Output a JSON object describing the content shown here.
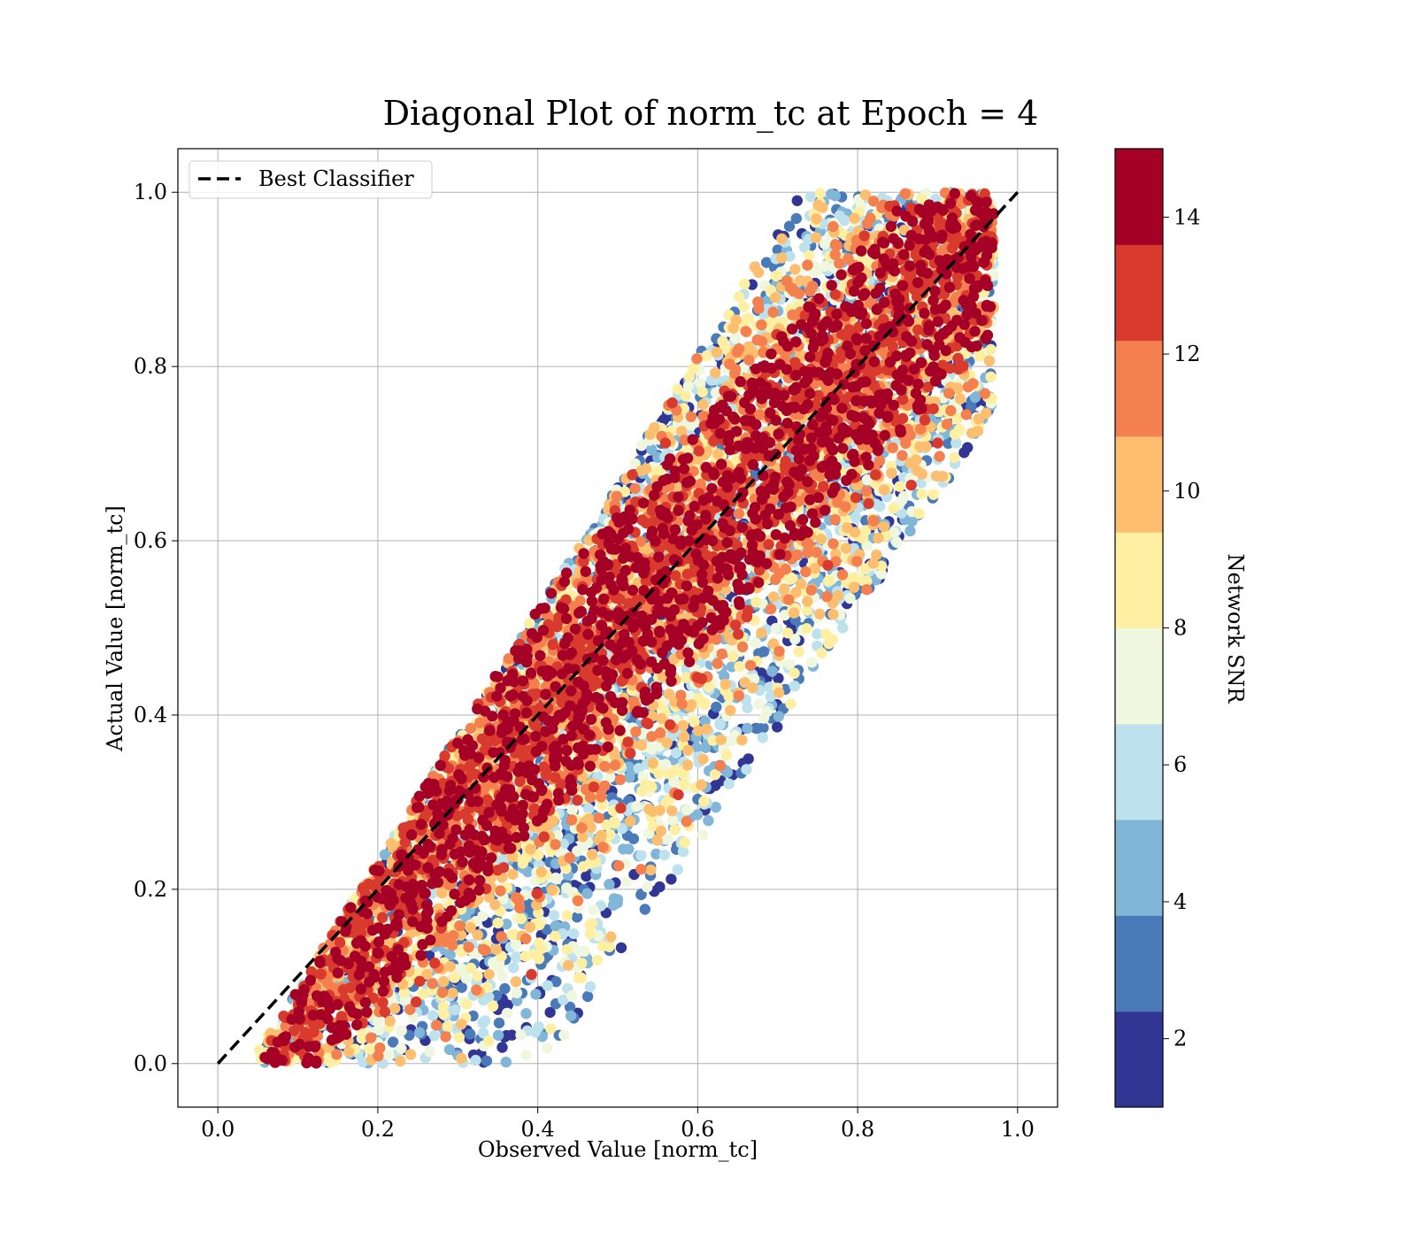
{
  "chart_data": {
    "type": "scatter",
    "title": "Diagonal Plot of norm_tc at Epoch = 4",
    "xlabel": "Observed Value [norm_tc]",
    "ylabel": "Actual Value [norm_tc]",
    "xlim": [
      -0.05,
      1.05
    ],
    "ylim": [
      -0.05,
      1.05
    ],
    "xticks": [
      "0.0",
      "0.2",
      "0.4",
      "0.6",
      "0.8",
      "1.0"
    ],
    "yticks": [
      "0.0",
      "0.2",
      "0.4",
      "0.6",
      "0.8",
      "1.0"
    ],
    "grid": true,
    "legend": {
      "placement": "upper-left",
      "entries": [
        {
          "label": "Best Classifier",
          "style": "black dashed line"
        }
      ]
    },
    "reference_line": {
      "label": "Best Classifier",
      "x": [
        0.0,
        1.0
      ],
      "y": [
        0.0,
        1.0
      ],
      "color": "#000000"
    },
    "colorbar": {
      "label": "Network SNR",
      "range": [
        1,
        15
      ],
      "ticks": [
        "2",
        "4",
        "6",
        "8",
        "10",
        "12",
        "14"
      ],
      "colors": [
        "#313695",
        "#4a7ab7",
        "#81b6d8",
        "#bde2ed",
        "#eff8df",
        "#feefa3",
        "#fdbe70",
        "#f47f4f",
        "#d83a2e",
        "#a50026"
      ]
    },
    "point_distribution": {
      "description_note": "Dense scatter of tens of thousands of points. High-SNR (≈14) points form a dense band along the diagonal x≈y; lower-SNR points spread further from the diagonal toward the upper-left and lower-right.",
      "x_range": [
        0.05,
        0.97
      ],
      "y_range": [
        0.0,
        1.0
      ],
      "dense_band_halfwidth": 0.13
    }
  }
}
